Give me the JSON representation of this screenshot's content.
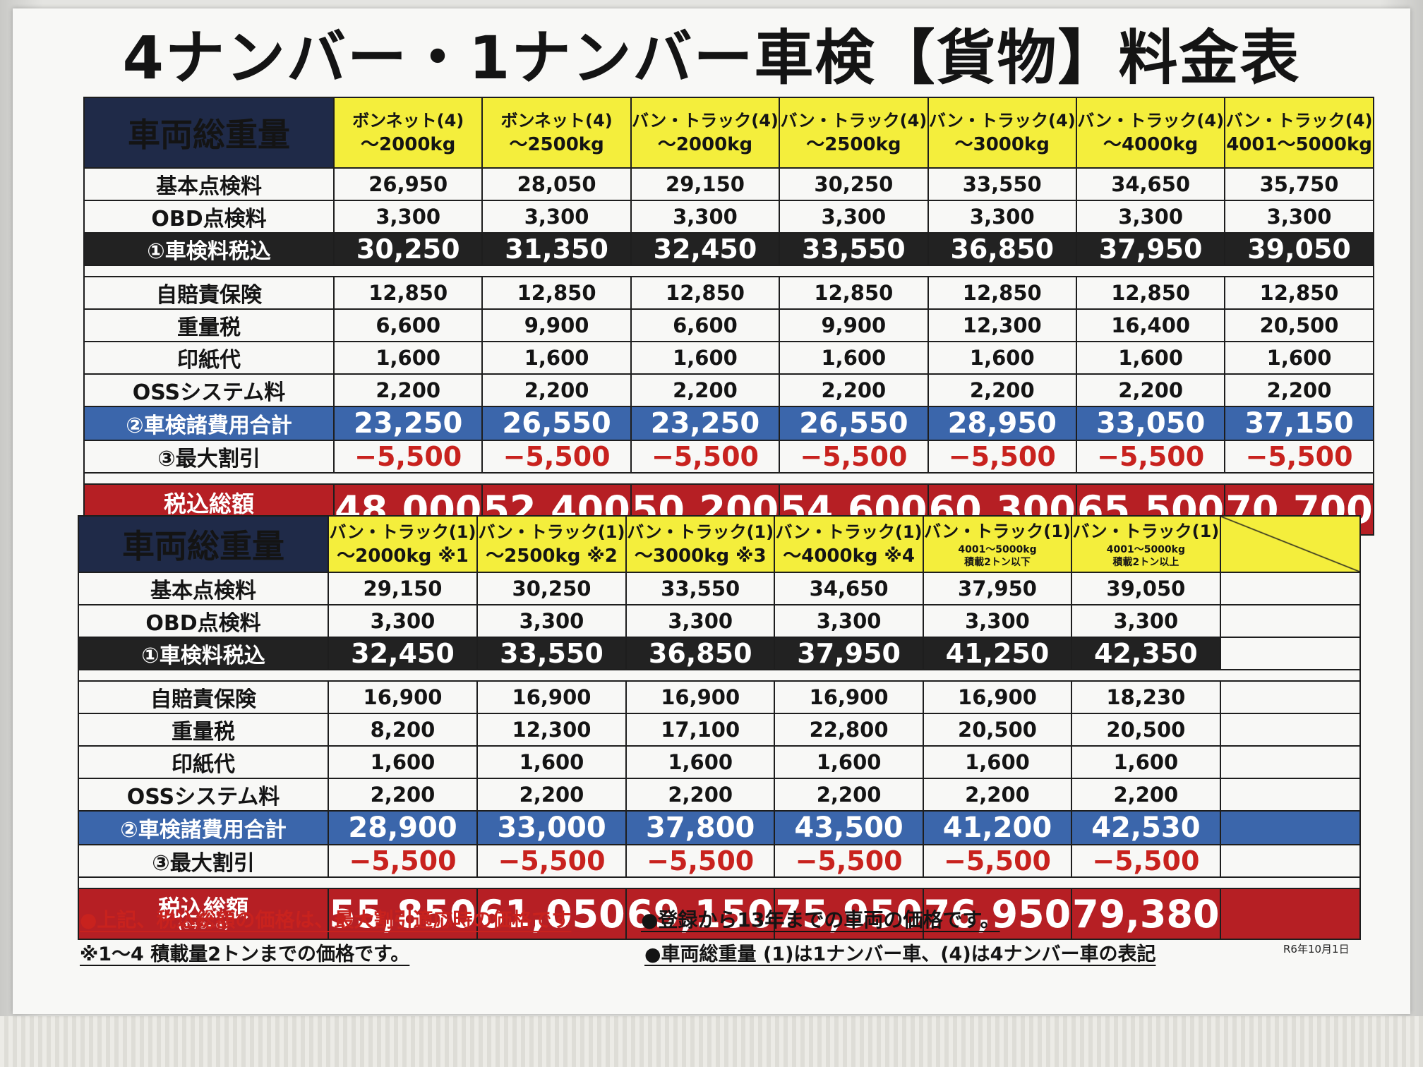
{
  "title": "4ナンバー・1ナンバー車検【貨物】料金表",
  "corner_label": "車両総重量",
  "row_labels": {
    "basic": "基本点検料",
    "obd": "OBD点検料",
    "inspection_total": "①車検料税込",
    "insurance": "自賠責保険",
    "weight_tax": "重量税",
    "stamp": "印紙代",
    "oss": "OSSシステム料",
    "expenses_total": "②車検諸費用合計",
    "discount": "③最大割引",
    "grand_total": "税込総額",
    "formula": "(①+②−③)"
  },
  "table1": {
    "headers": [
      {
        "line1": "ボンネット(4)",
        "line2": "〜2000kg"
      },
      {
        "line1": "ボンネット(4)",
        "line2": "〜2500kg"
      },
      {
        "line1": "バン・トラック(4)",
        "line2": "〜2000kg"
      },
      {
        "line1": "バン・トラック(4)",
        "line2": "〜2500kg"
      },
      {
        "line1": "バン・トラック(4)",
        "line2": "〜3000kg"
      },
      {
        "line1": "バン・トラック(4)",
        "line2": "〜4000kg"
      },
      {
        "line1": "バン・トラック(4)",
        "line2": "4001〜5000kg"
      }
    ],
    "basic": [
      "26,950",
      "28,050",
      "29,150",
      "30,250",
      "33,550",
      "34,650",
      "35,750"
    ],
    "obd": [
      "3,300",
      "3,300",
      "3,300",
      "3,300",
      "3,300",
      "3,300",
      "3,300"
    ],
    "inspection_total": [
      "30,250",
      "31,350",
      "32,450",
      "33,550",
      "36,850",
      "37,950",
      "39,050"
    ],
    "insurance": [
      "12,850",
      "12,850",
      "12,850",
      "12,850",
      "12,850",
      "12,850",
      "12,850"
    ],
    "weight_tax": [
      "6,600",
      "9,900",
      "6,600",
      "9,900",
      "12,300",
      "16,400",
      "20,500"
    ],
    "stamp": [
      "1,600",
      "1,600",
      "1,600",
      "1,600",
      "1,600",
      "1,600",
      "1,600"
    ],
    "oss": [
      "2,200",
      "2,200",
      "2,200",
      "2,200",
      "2,200",
      "2,200",
      "2,200"
    ],
    "expenses_total": [
      "23,250",
      "26,550",
      "23,250",
      "26,550",
      "28,950",
      "33,050",
      "37,150"
    ],
    "discount": [
      "−5,500",
      "−5,500",
      "−5,500",
      "−5,500",
      "−5,500",
      "−5,500",
      "−5,500"
    ],
    "grand_total": [
      "48,000",
      "52,400",
      "50,200",
      "54,600",
      "60,300",
      "65,500",
      "70,700"
    ]
  },
  "table2": {
    "headers": [
      {
        "line1": "バン・トラック(1)",
        "line2": "〜2000kg ※1"
      },
      {
        "line1": "バン・トラック(1)",
        "line2": "〜2500kg ※2"
      },
      {
        "line1": "バン・トラック(1)",
        "line2": "〜3000kg ※3"
      },
      {
        "line1": "バン・トラック(1)",
        "line2": "〜4000kg ※4"
      },
      {
        "line1": "バン・トラック(1)",
        "line2": "4001〜5000kg",
        "line3": "積載2トン以下"
      },
      {
        "line1": "バン・トラック(1)",
        "line2": "4001〜5000kg",
        "line3": "積載2トン以上"
      }
    ],
    "basic": [
      "29,150",
      "30,250",
      "33,550",
      "34,650",
      "37,950",
      "39,050"
    ],
    "obd": [
      "3,300",
      "3,300",
      "3,300",
      "3,300",
      "3,300",
      "3,300"
    ],
    "inspection_total": [
      "32,450",
      "33,550",
      "36,850",
      "37,950",
      "41,250",
      "42,350"
    ],
    "insurance": [
      "16,900",
      "16,900",
      "16,900",
      "16,900",
      "16,900",
      "18,230"
    ],
    "weight_tax": [
      "8,200",
      "12,300",
      "17,100",
      "22,800",
      "20,500",
      "20,500"
    ],
    "stamp": [
      "1,600",
      "1,600",
      "1,600",
      "1,600",
      "1,600",
      "1,600"
    ],
    "oss": [
      "2,200",
      "2,200",
      "2,200",
      "2,200",
      "2,200",
      "2,200"
    ],
    "expenses_total": [
      "28,900",
      "33,000",
      "37,800",
      "43,500",
      "41,200",
      "42,530"
    ],
    "discount": [
      "−5,500",
      "−5,500",
      "−5,500",
      "−5,500",
      "−5,500",
      "−5,500"
    ],
    "grand_total": [
      "55,850",
      "61,050",
      "69,150",
      "75,950",
      "76,950",
      "79,380"
    ]
  },
  "notes": {
    "note1": "●上記、税込総額の価格は、最大割引適応時の価格です",
    "note2": "●登録から13年までの車両の価格です。",
    "note3": "※1〜4 積載量2トンまでの価格です。",
    "note4": "●車両総重量 (1)は1ナンバー車、(4)は4ナンバー車の表記",
    "date": "R6年10月1日"
  },
  "colors": {
    "header_yellow": "#f4ee3c",
    "corner_navy": "#1f2a48",
    "subtotal_black": "#222222",
    "expenses_blue": "#3b66ab",
    "total_red": "#b61f24",
    "discount_red": "#c8221e"
  }
}
